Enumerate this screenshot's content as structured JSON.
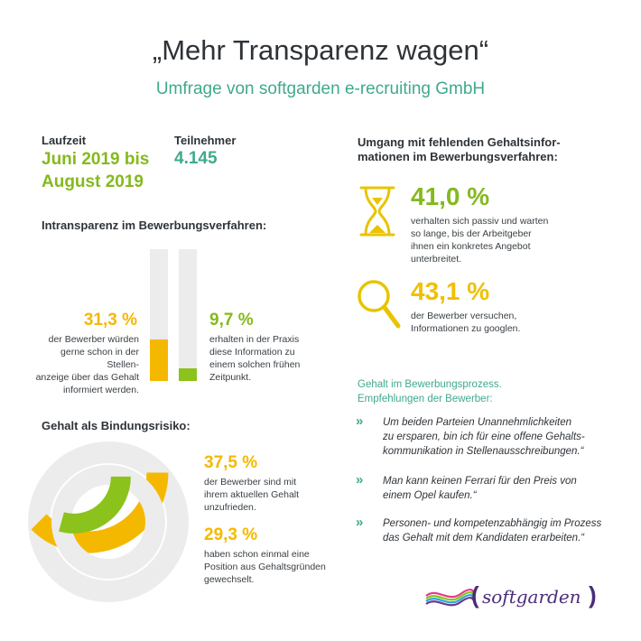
{
  "header": {
    "title": "„Mehr Transparenz wagen“",
    "subtitle": "Umfrage von softgarden e-recruiting GmbH"
  },
  "facts": {
    "duration_label": "Laufzeit",
    "duration_line1": "Juni 2019 bis",
    "duration_line2": "August 2019",
    "participants_label": "Teilnehmer",
    "participants_value": "4.145"
  },
  "intransparency": {
    "heading": "Intransparenz im Bewerbungsverfahren:",
    "left_pct": "31,3 %",
    "left_text": [
      "der Bewerber würden",
      "gerne schon in der Stellen-",
      "anzeige über das Gehalt",
      "informiert werden."
    ],
    "left_value": 31.3,
    "right_pct": "9,7 %",
    "right_text": [
      "erhalten in der Praxis",
      "diese Information zu",
      "einem solchen frühen",
      "Zeitpunkt."
    ],
    "right_value": 9.7,
    "colors": {
      "left": "#f5b800",
      "right": "#8cc21c",
      "track": "#ececec"
    }
  },
  "retention": {
    "heading": "Gehalt als Bindungsrisiko:",
    "first_pct": "37,5 %",
    "first_text": [
      "der Bewerber sind mit",
      "ihrem aktuellen Gehalt",
      "unzufrieden."
    ],
    "first_value": 37.5,
    "second_pct": "29,3 %",
    "second_text": [
      "haben schon einmal eine",
      "Position aus Gehaltsgründen",
      "gewechselt."
    ],
    "second_value": 29.3
  },
  "missing_info": {
    "heading_line1": "Umgang mit fehlenden Gehaltsinfor-",
    "heading_line2": "mationen im Bewerbungsverfahren:",
    "passive_pct": "41,0 %",
    "passive_text": [
      "verhalten sich passiv und warten",
      "so lange, bis der Arbeitgeber",
      "ihnen ein konkretes Angebot",
      "unterbreitet."
    ],
    "google_pct": "43,1 %",
    "google_text": [
      "der Bewerber versuchen,",
      "Informationen zu googlen."
    ]
  },
  "recommendations": {
    "heading_line1": "Gehalt im Bewerbungsprozess.",
    "heading_line2": "Empfehlungen der Bewerber:",
    "chevron": "»",
    "quotes": [
      [
        "Um beiden Parteien Unannehmlichkeiten",
        "zu ersparen, bin ich für eine offene Gehalts-",
        "kommunikation in Stellenausschreibungen.“"
      ],
      [
        "Man kann keinen Ferrari für den Preis von",
        "einem Opel kaufen.“"
      ],
      [
        "Personen- und kompetenzabhängig im Prozess",
        "das Gehalt mit dem Kandidaten erarbeiten.“"
      ]
    ]
  },
  "brand": {
    "logo_text": "softgarden",
    "open_paren": "(",
    "close_paren": ")"
  }
}
